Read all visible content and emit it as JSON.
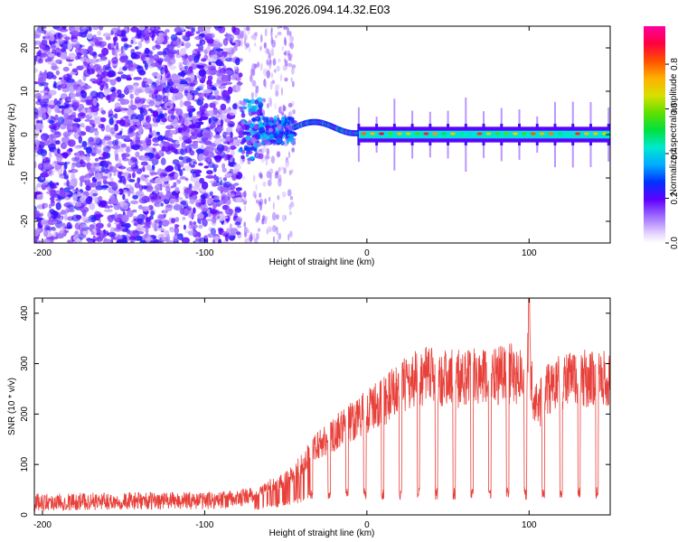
{
  "title": "S196.2026.094.14.32.E03",
  "chart_data": [
    {
      "type": "heatmap",
      "xlabel": "Height of straight line (km)",
      "ylabel": "Frequency (Hz)",
      "xlim": [
        -205,
        150
      ],
      "ylim": [
        -25,
        25
      ],
      "xticks": [
        -200,
        -100,
        0,
        100
      ],
      "yticks": [
        -20,
        -10,
        0,
        10,
        20
      ],
      "regions": [
        {
          "x_range": [
            -205,
            -78
          ],
          "description": "broadband scattered noise",
          "amplitude": [
            0.05,
            0.25
          ]
        },
        {
          "x_range": [
            -78,
            -45
          ],
          "description": "transition, clustered energy near 0 Hz",
          "amplitude": [
            0.1,
            0.4
          ]
        },
        {
          "x_range": [
            -45,
            -5
          ],
          "description": "wavy line near 0 to 3 Hz",
          "amplitude": [
            0.3,
            0.6
          ]
        },
        {
          "x_range": [
            -5,
            150
          ],
          "description": "strong line at 0 Hz with periodic spikes",
          "amplitude": [
            0.4,
            0.9
          ],
          "spike_period_km": 11
        }
      ],
      "colorbar": {
        "label": "Normalized spectral amplitude",
        "range": [
          0,
          0.97
        ],
        "ticks": [
          0.0,
          0.2,
          0.4,
          0.6,
          0.8
        ]
      }
    },
    {
      "type": "line",
      "xlabel": "Height of straight line (km)",
      "ylabel": "SNR (10 * v/v)",
      "xlim": [
        -205,
        150
      ],
      "ylim": [
        0,
        430
      ],
      "xticks": [
        -200,
        -100,
        0,
        100
      ],
      "yticks": [
        0,
        100,
        200,
        300,
        400
      ],
      "color": "#e8403a",
      "series": [
        {
          "name": "SNR",
          "x": [
            -205,
            -150,
            -100,
            -80,
            -70,
            -60,
            -50,
            -40,
            -30,
            -20,
            -10,
            0,
            10,
            20,
            30,
            40,
            50,
            60,
            70,
            80,
            90,
            95,
            99,
            100,
            101,
            105,
            110,
            120,
            130,
            140,
            150
          ],
          "values": [
            22,
            24,
            25,
            28,
            35,
            60,
            70,
            100,
            140,
            160,
            185,
            205,
            225,
            250,
            270,
            275,
            270,
            272,
            270,
            275,
            280,
            275,
            270,
            430,
            260,
            210,
            245,
            265,
            270,
            270,
            265
          ],
          "dropout_period_km": 11,
          "dropout_floor": 30,
          "noise_floor": [
            10,
            45
          ]
        }
      ]
    }
  ]
}
